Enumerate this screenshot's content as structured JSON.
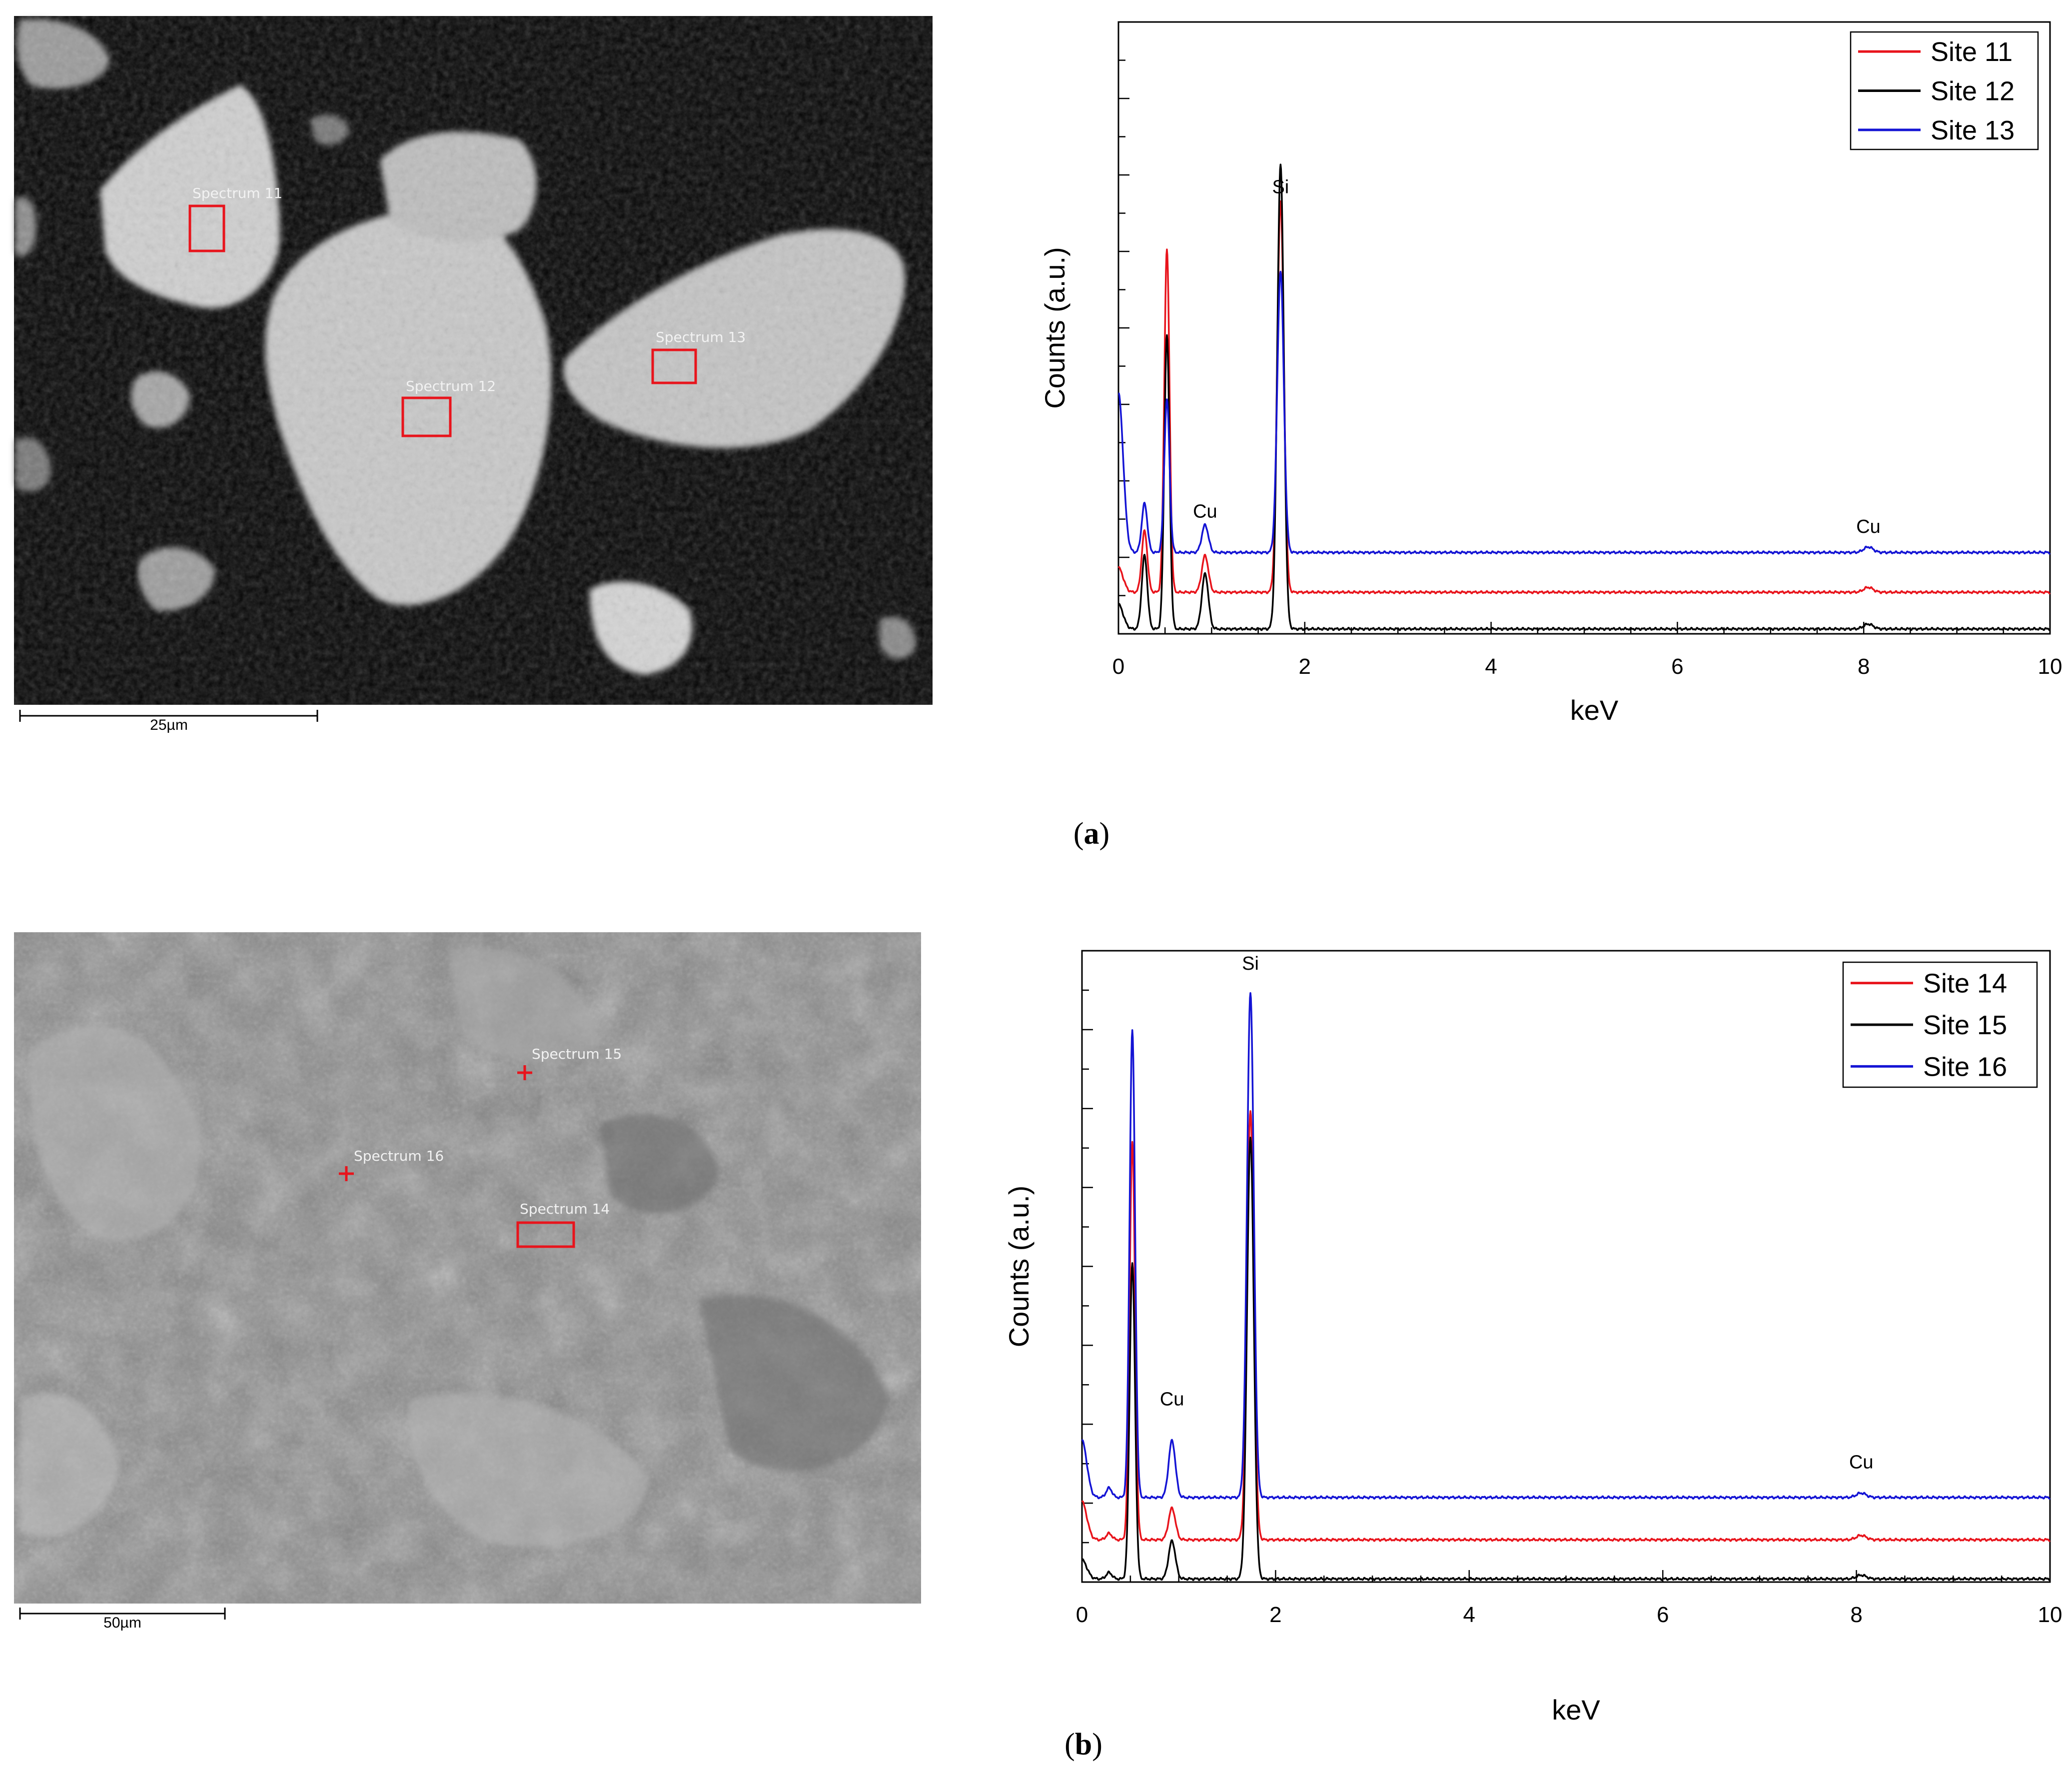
{
  "panels": [
    {
      "label_open": "(",
      "label_letter": "a",
      "label_close": ")",
      "sem": {
        "scale_bar": "25µm",
        "spectra": [
          {
            "label": "Spectrum 11",
            "marker": "box"
          },
          {
            "label": "Spectrum 12",
            "marker": "box"
          },
          {
            "label": "Spectrum 13",
            "marker": "box"
          }
        ]
      }
    },
    {
      "label_open": "(",
      "label_letter": "b",
      "label_close": ")",
      "sem": {
        "scale_bar": "50µm",
        "spectra": [
          {
            "label": "Spectrum 15",
            "marker": "cross"
          },
          {
            "label": "Spectrum 16",
            "marker": "cross"
          },
          {
            "label": "Spectrum 14",
            "marker": "box"
          }
        ]
      }
    }
  ],
  "chart_data": [
    {
      "type": "line",
      "title": "",
      "xlabel": "keV",
      "ylabel": "Counts (a.u.)",
      "xlim": [
        0,
        10
      ],
      "ylim": [
        0,
        100
      ],
      "xticks": [
        "0",
        "2",
        "4",
        "6",
        "8",
        "10"
      ],
      "legend_position": "top-right",
      "annotations": [
        {
          "text": "Si",
          "x": 1.74,
          "y": 72
        },
        {
          "text": "Cu",
          "x": 0.93,
          "y": 19
        },
        {
          "text": "Cu",
          "x": 8.05,
          "y": 16.5
        }
      ],
      "series": [
        {
          "name": "Site 11",
          "color": "#e8141c",
          "baseline": 6.8,
          "peaks": [
            [
              0.0,
              0.05,
              4
            ],
            [
              0.28,
              0.03,
              10
            ],
            [
              0.52,
              0.028,
              56
            ],
            [
              0.93,
              0.035,
              6
            ],
            [
              1.74,
              0.035,
              64
            ],
            [
              8.05,
              0.05,
              0.8
            ]
          ]
        },
        {
          "name": "Site 12",
          "color": "#000000",
          "baseline": 0.8,
          "peaks": [
            [
              0.0,
              0.05,
              4
            ],
            [
              0.28,
              0.03,
              12
            ],
            [
              0.52,
              0.028,
              48
            ],
            [
              0.93,
              0.035,
              9
            ],
            [
              1.74,
              0.035,
              76
            ],
            [
              8.05,
              0.05,
              0.8
            ]
          ]
        },
        {
          "name": "Site 13",
          "color": "#1414d4",
          "baseline": 13.3,
          "peaks": [
            [
              0.0,
              0.05,
              26
            ],
            [
              0.28,
              0.03,
              8
            ],
            [
              0.52,
              0.028,
              25
            ],
            [
              0.93,
              0.035,
              4.5
            ],
            [
              1.74,
              0.035,
              46
            ],
            [
              8.05,
              0.05,
              0.9
            ]
          ]
        }
      ]
    },
    {
      "type": "line",
      "title": "",
      "xlabel": "keV",
      "ylabel": "Counts (a.u.)",
      "xlim": [
        0,
        10
      ],
      "ylim": [
        0,
        100
      ],
      "xticks": [
        "0",
        "2",
        "4",
        "6",
        "8",
        "10"
      ],
      "legend_position": "top-right",
      "annotations": [
        {
          "text": "Si",
          "x": 1.74,
          "y": 97
        },
        {
          "text": "Cu",
          "x": 0.93,
          "y": 28
        },
        {
          "text": "Cu",
          "x": 8.05,
          "y": 18
        }
      ],
      "series": [
        {
          "name": "Site 14",
          "color": "#e8141c",
          "baseline": 6.7,
          "peaks": [
            [
              0.0,
              0.05,
              6
            ],
            [
              0.28,
              0.03,
              1
            ],
            [
              0.52,
              0.028,
              63
            ],
            [
              0.93,
              0.035,
              5
            ],
            [
              1.74,
              0.035,
              68
            ],
            [
              8.05,
              0.05,
              0.7
            ]
          ]
        },
        {
          "name": "Site 15",
          "color": "#000000",
          "baseline": 0.5,
          "peaks": [
            [
              0.0,
              0.05,
              3
            ],
            [
              0.28,
              0.03,
              1
            ],
            [
              0.52,
              0.028,
              50
            ],
            [
              0.93,
              0.035,
              6
            ],
            [
              1.74,
              0.035,
              70
            ],
            [
              8.05,
              0.05,
              0.6
            ]
          ]
        },
        {
          "name": "Site 16",
          "color": "#1414d4",
          "baseline": 13.4,
          "peaks": [
            [
              0.0,
              0.05,
              9
            ],
            [
              0.28,
              0.03,
              1.5
            ],
            [
              0.52,
              0.028,
              74
            ],
            [
              0.93,
              0.035,
              9
            ],
            [
              1.74,
              0.035,
              80
            ],
            [
              8.05,
              0.05,
              0.7
            ]
          ]
        }
      ]
    }
  ]
}
